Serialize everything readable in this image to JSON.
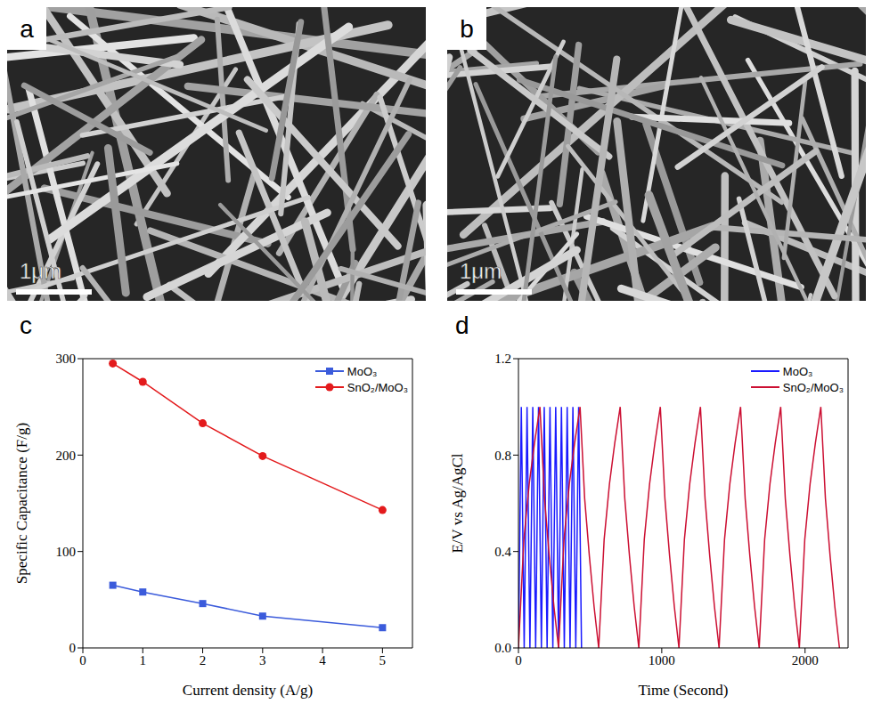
{
  "images": [
    {
      "label": "a",
      "scale_bar": "1μm"
    },
    {
      "label": "b",
      "scale_bar": "1μm"
    }
  ],
  "chart_data": [
    {
      "label": "c",
      "type": "line",
      "x_label": "Current density (A/g)",
      "y_label": "Specific Capacitance (F/g)",
      "x": [
        0.5,
        1,
        2,
        3,
        5
      ],
      "xlim": [
        0,
        5.5
      ],
      "xticks": [
        0,
        1,
        2,
        3,
        4,
        5
      ],
      "ylim": [
        0,
        300
      ],
      "yticks": [
        0,
        100,
        200,
        300
      ],
      "legend": "upper right",
      "series": [
        {
          "name": "MoO₃",
          "color": "#3b5bdb",
          "marker": "square",
          "values": [
            65,
            58,
            46,
            33,
            21
          ]
        },
        {
          "name": "SnO₂/MoO₃",
          "color": "#e31a1c",
          "marker": "circle",
          "values": [
            295,
            276,
            233,
            199,
            143
          ]
        }
      ]
    },
    {
      "label": "d",
      "type": "line",
      "x_label": "Time (Second)",
      "y_label": "E/V vs Ag/AgCl",
      "xlim": [
        0,
        2300
      ],
      "xticks": [
        0,
        1000,
        2000
      ],
      "ylim": [
        0,
        1.2
      ],
      "yticks": [
        {
          "value": 0,
          "label": "0.0"
        },
        {
          "value": 0.4,
          "label": "0.4"
        },
        {
          "value": 0.8,
          "label": "0.8"
        },
        {
          "value": 1.2,
          "label": "1.2"
        }
      ],
      "legend": "upper right",
      "series": [
        {
          "name": "MoO₃",
          "color": "#1a1aff",
          "x": [
            0,
            20,
            40,
            60,
            80,
            100,
            120,
            140,
            160,
            180,
            200,
            220,
            240,
            260,
            280,
            300,
            320,
            340,
            360,
            380,
            400,
            420,
            440
          ],
          "values": [
            0,
            1,
            0,
            1,
            0,
            1,
            0,
            1,
            0,
            1,
            0,
            1,
            0,
            1,
            0,
            1,
            0,
            1,
            0,
            1,
            0,
            1,
            0
          ]
        },
        {
          "name": "SnO₂/MoO₃",
          "color": "#cc1033",
          "x": [
            0,
            38,
            75,
            112,
            150,
            182,
            215,
            248,
            280,
            318,
            355,
            392,
            430,
            462,
            495,
            528,
            560,
            598,
            635,
            672,
            710,
            742,
            775,
            808,
            840,
            878,
            915,
            952,
            990,
            1022,
            1055,
            1088,
            1120,
            1158,
            1195,
            1232,
            1270,
            1302,
            1335,
            1368,
            1400,
            1438,
            1475,
            1512,
            1550,
            1582,
            1615,
            1648,
            1680,
            1718,
            1755,
            1792,
            1830,
            1862,
            1895,
            1928,
            1960,
            1998,
            2035,
            2072,
            2110,
            2142,
            2175,
            2208,
            2240
          ],
          "values": [
            0,
            0.45,
            0.68,
            0.85,
            1,
            0.62,
            0.38,
            0.17,
            0,
            0.45,
            0.68,
            0.85,
            1,
            0.62,
            0.38,
            0.17,
            0,
            0.45,
            0.68,
            0.85,
            1,
            0.62,
            0.38,
            0.17,
            0,
            0.45,
            0.68,
            0.85,
            1,
            0.62,
            0.38,
            0.17,
            0,
            0.45,
            0.68,
            0.85,
            1,
            0.62,
            0.38,
            0.17,
            0,
            0.45,
            0.68,
            0.85,
            1,
            0.62,
            0.38,
            0.17,
            0,
            0.45,
            0.68,
            0.85,
            1,
            0.62,
            0.38,
            0.17,
            0,
            0.45,
            0.68,
            0.85,
            1,
            0.62,
            0.38,
            0.17,
            0
          ]
        }
      ]
    }
  ]
}
